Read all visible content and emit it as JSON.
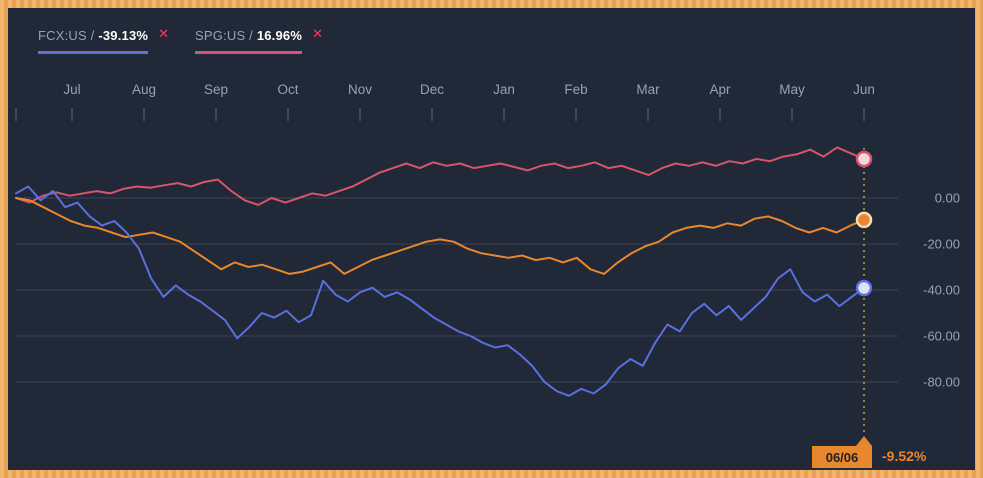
{
  "legend": {
    "items": [
      {
        "ticker": "FCX:US /",
        "value": "-39.13%",
        "underline_color": "#5b6fde",
        "close_label": "✕"
      },
      {
        "ticker": "SPG:US /",
        "value": "16.96%",
        "underline_color": "#d5566c",
        "close_label": "✕"
      }
    ]
  },
  "chart_data": {
    "type": "line",
    "title": "",
    "x_axis": {
      "tick_labels": [
        "Jul",
        "Aug",
        "Sep",
        "Oct",
        "Nov",
        "Dec",
        "Jan",
        "Feb",
        "Mar",
        "Apr",
        "May",
        "Jun"
      ]
    },
    "y_axis": {
      "tick_labels": [
        "0.00",
        "-20.00",
        "-40.00",
        "-60.00",
        "-80.00"
      ],
      "tick_values": [
        0,
        -20,
        -40,
        -60,
        -80
      ],
      "unit": "%"
    },
    "series": [
      {
        "name": "SPG:US",
        "color": "#d5566c",
        "final_value": 16.96,
        "marker_fill": "#f6d6db",
        "marker_stroke": "#d5566c",
        "values": [
          0,
          -2,
          1,
          2.5,
          1,
          2,
          3,
          2,
          4,
          5,
          4.5,
          5.5,
          6.5,
          5,
          7,
          8,
          3,
          -1,
          -3,
          0,
          -2,
          0,
          2,
          1,
          3,
          5,
          8,
          11,
          13,
          15,
          13,
          15.5,
          14,
          15,
          13,
          14,
          15,
          13.5,
          12,
          14,
          15,
          13,
          14,
          15.5,
          13,
          14,
          12,
          10,
          13,
          15,
          14,
          15.5,
          14,
          16,
          15,
          17,
          16,
          18,
          19,
          21,
          18,
          22,
          19.5,
          16.96
        ]
      },
      {
        "name": "",
        "color": "#e8872d",
        "final_value": -9.52,
        "marker_fill": "#e8872d",
        "marker_stroke": "#f7dcb8",
        "values": [
          0,
          -1,
          -4,
          -7,
          -10,
          -12,
          -13,
          -15,
          -17,
          -16,
          -15,
          -17,
          -19,
          -23,
          -27,
          -31,
          -28,
          -30,
          -29,
          -31,
          -33,
          -32,
          -30,
          -28,
          -33,
          -30,
          -27,
          -25,
          -23,
          -21,
          -19,
          -18,
          -19,
          -22,
          -24,
          -25,
          -26,
          -25,
          -27,
          -26,
          -28,
          -26,
          -31,
          -33,
          -28,
          -24,
          -21,
          -19,
          -15,
          -13,
          -12,
          -13,
          -11,
          -12,
          -9,
          -8,
          -10,
          -13,
          -15,
          -13,
          -15,
          -12,
          -9.52
        ]
      },
      {
        "name": "FCX:US",
        "color": "#5b6fde",
        "final_value": -39.13,
        "marker_fill": "#dde3fa",
        "marker_stroke": "#5b6fde",
        "values": [
          2,
          5,
          -1,
          3,
          -4,
          -2,
          -8,
          -12,
          -10,
          -15,
          -22,
          -35,
          -43,
          -38,
          -42,
          -45,
          -49,
          -53,
          -61,
          -56,
          -50,
          -52,
          -49,
          -54,
          -51,
          -36,
          -42,
          -45,
          -41,
          -39,
          -43,
          -41,
          -44,
          -48,
          -52,
          -55,
          -58,
          -60,
          -63,
          -65,
          -64,
          -68,
          -73,
          -80,
          -84,
          -86,
          -83,
          -85,
          -81,
          -74,
          -70,
          -73,
          -63,
          -55,
          -58,
          -50,
          -46,
          -51,
          -47,
          -53,
          -48,
          -43,
          -35,
          -31,
          -41,
          -45,
          -42,
          -47,
          -43,
          -39.13
        ]
      }
    ],
    "annotation": {
      "date": "06/06",
      "value_label": "-9.52%",
      "color": "#e8872d"
    }
  },
  "colors": {
    "background": "#212837",
    "grid": "#3d4557",
    "axis_text": "#99a1b0",
    "tick": "#4d566a",
    "cursor_line": "#cfa53d",
    "frame": "#f0b269",
    "close_icon": "#e3434f"
  }
}
